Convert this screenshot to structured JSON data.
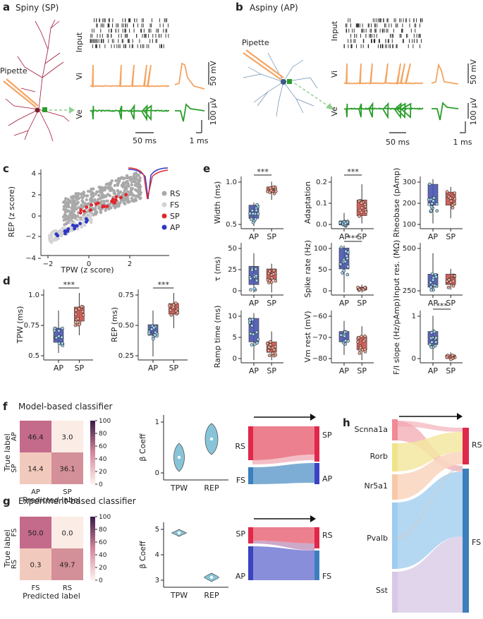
{
  "panel_a": {
    "letter": "a",
    "title": "Spiny (SP)",
    "pipette": "Pipette",
    "input_label": "Input",
    "vi_label": "Vi",
    "ve_label": "Ve",
    "scale_time": "50 ms",
    "scale_time_short": "1 ms",
    "scale_vi": "50 mV",
    "scale_ve": "100 μV"
  },
  "panel_b": {
    "letter": "b",
    "title": "Aspiny (AP)",
    "pipette": "Pipette",
    "input_label": "Input",
    "vi_label": "Vi",
    "ve_label": "Ve",
    "scale_time": "50 ms",
    "scale_time_short": "1 ms",
    "scale_vi": "50 mV",
    "scale_ve": "100 μV"
  },
  "panel_c": {
    "letter": "c",
    "xlabel": "TPW (z score)",
    "ylabel": "REP (z score)",
    "xticks": [
      "−2",
      "0",
      "2"
    ],
    "yticks": [
      "−4",
      "−2",
      "0",
      "2",
      "4"
    ],
    "legend": [
      {
        "label": "RS",
        "color": "#a9a9a9"
      },
      {
        "label": "FS",
        "color": "#d3d3d3"
      },
      {
        "label": "SP",
        "color": "#e0282e"
      },
      {
        "label": "AP",
        "color": "#2e37c4"
      }
    ]
  },
  "panel_d": {
    "letter": "d",
    "sig": "***",
    "plots": [
      {
        "ylabel": "TPW (ms)",
        "yticks": [
          "0.5",
          "0.75",
          "1.0"
        ],
        "xticks": [
          "AP",
          "SP"
        ]
      },
      {
        "ylabel": "REP (ms)",
        "yticks": [
          "0.25",
          "0.50",
          "0.75"
        ],
        "xticks": [
          "AP",
          "SP"
        ]
      }
    ]
  },
  "panel_e": {
    "letter": "e",
    "sig": "***",
    "xticks": [
      "AP",
      "SP"
    ],
    "plots": [
      {
        "ylabel": "Width (ms)",
        "yticks": [
          "0.5",
          "1.0"
        ],
        "sig": true
      },
      {
        "ylabel": "Adaptation",
        "yticks": [
          "0.0",
          "0.1",
          "0.2"
        ],
        "sig": true
      },
      {
        "ylabel": "Rheobase (pAmp)",
        "yticks": [
          "100",
          "200",
          "300"
        ],
        "sig": false
      },
      {
        "ylabel": "τ (ms)",
        "yticks": [
          "0",
          "25",
          "50"
        ],
        "sig": false
      },
      {
        "ylabel": "Spike rate (Hz)",
        "yticks": [
          "0",
          "50",
          "100"
        ],
        "sig": true
      },
      {
        "ylabel": "Input res. (MΩ)",
        "yticks": [
          "250",
          "500"
        ],
        "sig": false
      },
      {
        "ylabel": "Ramp time (ms)",
        "yticks": [
          "0",
          "5",
          "10"
        ],
        "sig": false
      },
      {
        "ylabel": "Vm rest (mV)",
        "yticks": [
          "−80",
          "−70",
          "−60"
        ],
        "sig": false
      },
      {
        "ylabel": "F/I slope (Hz/pAmp)",
        "yticks": [
          "0",
          "1"
        ],
        "sig": true
      }
    ]
  },
  "panel_f": {
    "letter": "f",
    "title": "Model-based classifier",
    "ylabel": "True label",
    "xlabel": "Predicted label",
    "classes": [
      "AP",
      "SP"
    ],
    "matrix": [
      [
        "46.4",
        "3.0"
      ],
      [
        "14.4",
        "36.1"
      ]
    ],
    "cbar": [
      "0",
      "20",
      "40",
      "60",
      "80",
      "100"
    ],
    "violin": {
      "ylabel": "β Coeff",
      "yticks": [
        "0",
        "1"
      ],
      "xticks": [
        "TPW",
        "REP"
      ]
    },
    "sankey": {
      "left": [
        "RS",
        "FS"
      ],
      "right": [
        "SP",
        "AP"
      ]
    }
  },
  "panel_g": {
    "letter": "g",
    "title": "Experiment-based classifier",
    "ylabel": "True label",
    "xlabel": "Predicted label",
    "classes": [
      "FS",
      "RS"
    ],
    "matrix": [
      [
        "50.0",
        "0.0"
      ],
      [
        "0.3",
        "49.7"
      ]
    ],
    "cbar": [
      "0",
      "20",
      "40",
      "60",
      "80",
      "100"
    ],
    "violin": {
      "ylabel": "β Coeff",
      "yticks": [
        "3",
        "4",
        "5"
      ],
      "xticks": [
        "TPW",
        "REP"
      ]
    },
    "sankey": {
      "left": [
        "SP",
        "AP"
      ],
      "right": [
        "RS",
        "FS"
      ]
    }
  },
  "panel_h": {
    "letter": "h",
    "left": [
      "Scnna1a",
      "Rorb",
      "Nr5a1",
      "Pvalb",
      "Sst"
    ],
    "right": [
      "RS",
      "FS"
    ]
  },
  "colors": {
    "orange": "#f4a460",
    "green": "#2a9d2a",
    "sp": "#d9534f",
    "ap": "#3f4fb8",
    "box_ap": "#4a55b0",
    "box_sp": "#c9514c",
    "violin": "#87c4d8"
  }
}
